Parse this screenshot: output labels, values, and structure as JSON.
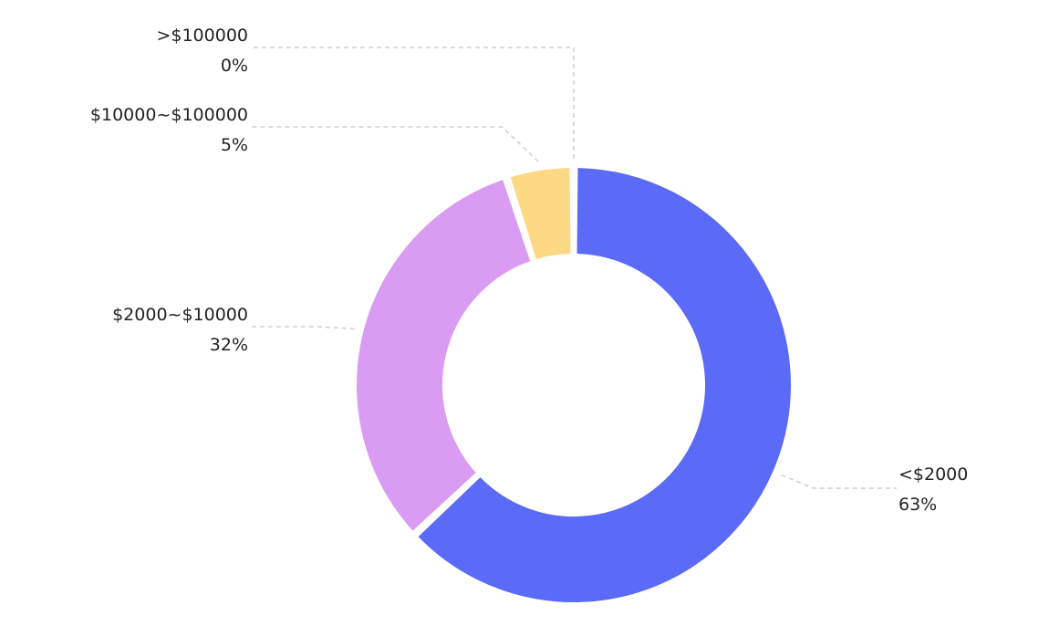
{
  "chart_data": {
    "type": "pie",
    "donut": true,
    "categories": [
      "<$2000",
      "$2000~$10000",
      "$10000~$100000",
      ">$100000"
    ],
    "values": [
      63,
      32,
      5,
      0
    ],
    "labels": [
      "63%",
      "32%",
      "5%",
      "0%"
    ],
    "colors": [
      "#5b6af7",
      "#da9cf2",
      "#fed985",
      "#a7e8c8"
    ],
    "legend": "none"
  }
}
